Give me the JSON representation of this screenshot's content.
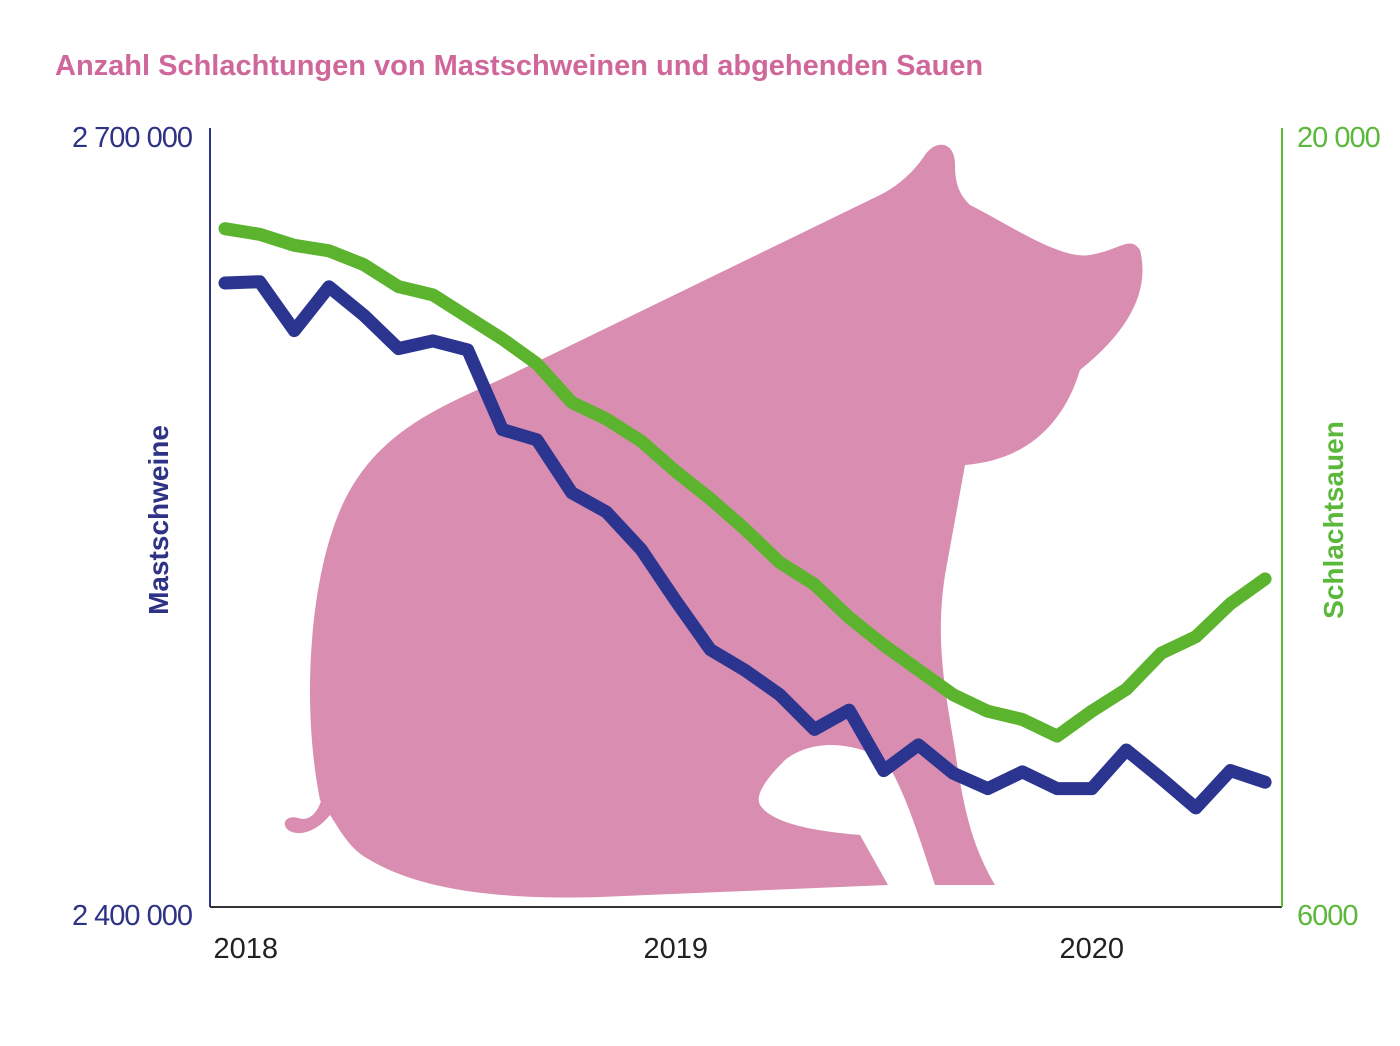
{
  "chart_data": {
    "type": "line",
    "title": "Anzahl Schlachtungen von Mastschweinen und abgehenden Sauen",
    "x": [
      "2018-01",
      "2018-02",
      "2018-03",
      "2018-04",
      "2018-05",
      "2018-06",
      "2018-07",
      "2018-08",
      "2018-09",
      "2018-10",
      "2018-11",
      "2018-12",
      "2019-01",
      "2019-02",
      "2019-03",
      "2019-04",
      "2019-05",
      "2019-06",
      "2019-07",
      "2019-08",
      "2019-09",
      "2019-10",
      "2019-11",
      "2019-12",
      "2020-01",
      "2020-02",
      "2020-03",
      "2020-04",
      "2020-05",
      "2020-06",
      "2020-07"
    ],
    "x_ticks": [
      {
        "label": "2018",
        "at": "2018-01"
      },
      {
        "label": "2019",
        "at": "2019-01"
      },
      {
        "label": "2020",
        "at": "2020-01"
      }
    ],
    "y_left": {
      "label": "Mastschweine",
      "range": [
        2400000,
        2700000
      ],
      "tick_labels": [
        "2 400 000",
        "2 700 000"
      ]
    },
    "y_right": {
      "label": "Schlachtsauen",
      "range": [
        6000,
        20000
      ],
      "tick_labels": [
        "6000",
        "20 000"
      ]
    },
    "grid": false,
    "series": [
      {
        "name": "Mastschweine",
        "axis": "left",
        "color": "#2b3590",
        "values": [
          2642500,
          2643000,
          2624000,
          2641000,
          2630000,
          2617000,
          2620000,
          2616500,
          2585500,
          2581500,
          2561000,
          2553500,
          2539000,
          2519000,
          2500000,
          2492000,
          2482500,
          2469000,
          2476500,
          2453000,
          2463000,
          2452000,
          2446000,
          2452500,
          2446000,
          2446000,
          2461000,
          2450000,
          2438500,
          2453000,
          2448500
        ]
      },
      {
        "name": "Schlachtsauen",
        "axis": "right",
        "color": "#5cb32e",
        "values": [
          18300,
          18200,
          18000,
          17900,
          17650,
          17250,
          17100,
          16700,
          16300,
          15850,
          15150,
          14850,
          14450,
          13900,
          13400,
          12850,
          12250,
          11850,
          11250,
          10750,
          10300,
          9850,
          9550,
          9400,
          9100,
          9550,
          9950,
          10600,
          10900,
          11500,
          11950
        ]
      }
    ],
    "colors": {
      "title": "#d0679b",
      "pig": "#d98db0",
      "left_axis": "#2e3385",
      "right_axis": "#5cb83a"
    }
  }
}
